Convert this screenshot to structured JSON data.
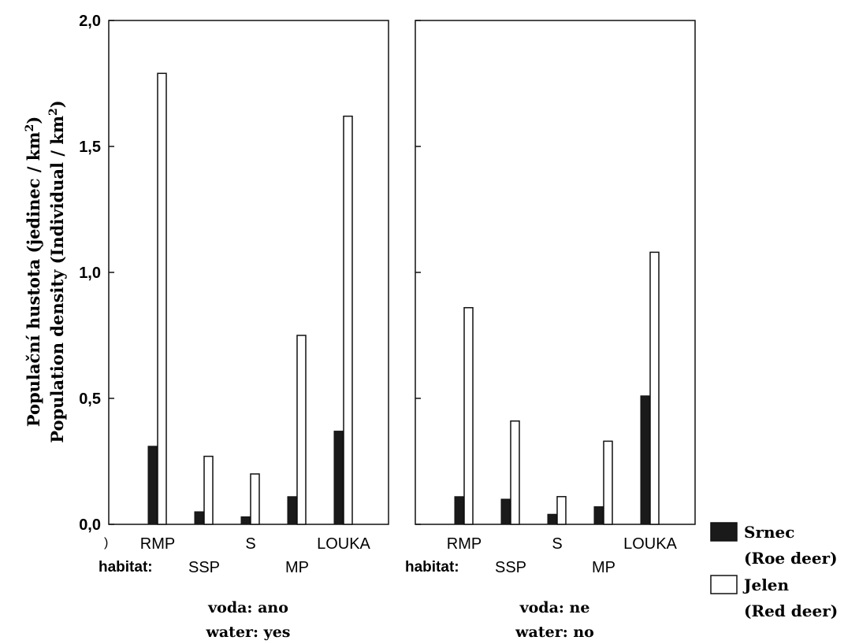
{
  "chart_data": [
    {
      "type": "bar",
      "title": "",
      "ylabel_line1": "Populační hustota (jedinec / km",
      "ylabel_line2": "Population density (Individual / km",
      "ylabel_sup": "2",
      "ylabel_close": ")",
      "ylim": [
        0,
        2.0
      ],
      "yticks": [
        "0,0",
        "0,5",
        "1,0",
        "1,5",
        "2,0"
      ],
      "habitat_label": "habitat:",
      "categories": [
        "RMP",
        "SSP",
        "S",
        "MP",
        "LOUKA"
      ],
      "series": [
        {
          "name": "Srnec (Roe deer)",
          "values": [
            0.31,
            0.05,
            0.03,
            0.11,
            0.37
          ]
        },
        {
          "name": "Jelen (Red deer)",
          "values": [
            1.79,
            0.27,
            0.2,
            0.75,
            1.62
          ]
        }
      ],
      "panel_label_line1": "voda: ano",
      "panel_label_line2": "water: yes",
      "stray_tick_label": ")"
    },
    {
      "type": "bar",
      "title": "",
      "ylim": [
        0,
        2.0
      ],
      "habitat_label": "habitat:",
      "categories": [
        "RMP",
        "SSP",
        "S",
        "MP",
        "LOUKA"
      ],
      "series": [
        {
          "name": "Srnec (Roe deer)",
          "values": [
            0.11,
            0.1,
            0.04,
            0.07,
            0.51
          ]
        },
        {
          "name": "Jelen (Red deer)",
          "values": [
            0.86,
            0.41,
            0.11,
            0.33,
            1.08
          ]
        }
      ],
      "panel_label_line1": "voda: ne",
      "panel_label_line2": "water: no"
    }
  ],
  "legend": {
    "items": [
      {
        "line1": "Srnec",
        "line2": "(Roe deer)",
        "color": "#1a1a1a"
      },
      {
        "line1": "Jelen",
        "line2": "(Red deer)",
        "color": "#ffffff"
      }
    ]
  },
  "colors": {
    "roe": "#1a1a1a",
    "red": "#ffffff",
    "axis": "#111111"
  }
}
